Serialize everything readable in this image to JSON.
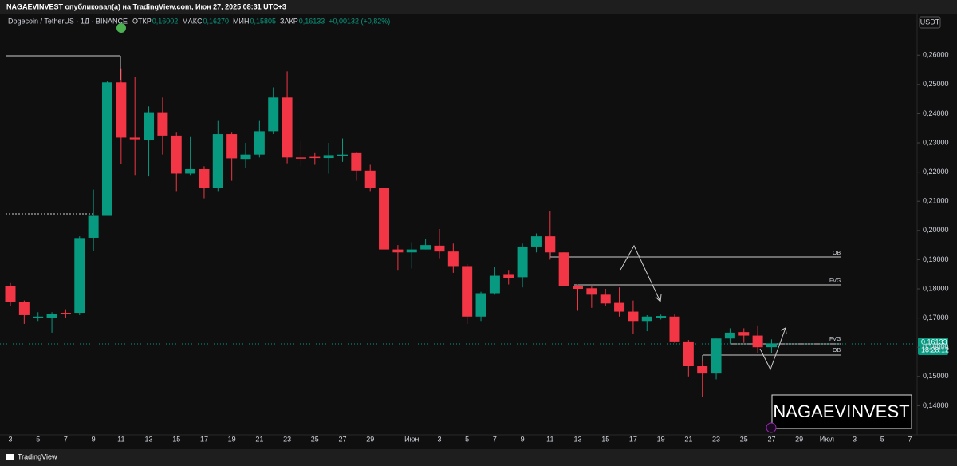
{
  "chart_data": {
    "type": "candlestick",
    "top_bar": "NAGAEVINVEST опубликовал(а) на TradingView.com, Июн 27, 2025 08:31 UTC+3",
    "symbol": "Dogecoin / TetherUS · 1Д · BINANCE",
    "ohlc_header": [
      {
        "label": "ОТКР",
        "value": "0,16002"
      },
      {
        "label": "МАКС",
        "value": "0,16270"
      },
      {
        "label": "МИН",
        "value": "0,15805"
      },
      {
        "label": "ЗАКР",
        "value": "0,16133"
      }
    ],
    "change": "+0,00132 (+0,82%)",
    "currency": "USDT",
    "last_price": "0,16133",
    "countdown": "18:28:12",
    "watermark": "NAGAEVINVEST",
    "footer": "TradingView",
    "annotations": [
      "OB",
      "FVG",
      "FVG",
      "OB"
    ],
    "up_color": "#089981",
    "down_color": "#f23645",
    "categories": [
      "3",
      null,
      "5",
      null,
      "7",
      null,
      "9",
      null,
      "11",
      null,
      "13",
      null,
      "15",
      null,
      "17",
      null,
      "19",
      null,
      "21",
      null,
      "23",
      null,
      "25",
      null,
      "27",
      null,
      "29",
      null,
      null,
      "Июн",
      null,
      "3",
      null,
      "5",
      null,
      "7",
      null,
      "9",
      null,
      "11",
      null,
      "13",
      null,
      "15",
      null,
      "17",
      null,
      "19",
      null,
      "21",
      null,
      "23",
      null,
      "25",
      null,
      "27",
      null,
      "29",
      null,
      "Июл",
      null,
      "3",
      null,
      "5",
      null,
      "7"
    ],
    "open": [
      0.181,
      0.1755,
      0.1705,
      0.17,
      0.1718,
      0.1718,
      0.1975,
      0.205,
      0.2507,
      0.2318,
      0.231,
      0.2405,
      0.2325,
      0.2195,
      0.221,
      0.2145,
      0.233,
      0.2245,
      0.226,
      0.234,
      0.2455,
      0.225,
      0.2252,
      0.2248,
      0.2258,
      0.2265,
      0.2205,
      0.2145,
      0.1935,
      0.1925,
      0.1935,
      0.1948,
      0.1928,
      0.1878,
      0.1705,
      0.1785,
      0.1848,
      0.184,
      0.1945,
      0.198,
      0.1925,
      0.181,
      0.1802,
      0.178,
      0.1752,
      0.1722,
      0.169,
      0.17,
      0.1705,
      0.162,
      0.1535,
      0.151,
      0.163,
      0.1652,
      0.164,
      0.16002,
      null,
      null,
      null,
      null,
      null,
      null,
      null,
      null,
      null,
      null
    ],
    "high": [
      0.182,
      0.176,
      0.172,
      0.172,
      0.173,
      0.198,
      0.214,
      0.251,
      0.2555,
      0.2525,
      0.2425,
      0.2455,
      0.2335,
      0.232,
      0.222,
      0.2375,
      0.2335,
      0.23,
      0.2375,
      0.249,
      0.2545,
      0.2305,
      0.2265,
      0.23,
      0.2315,
      0.227,
      0.2225,
      0.2145,
      0.195,
      0.196,
      0.197,
      0.2005,
      0.1955,
      0.1885,
      0.179,
      0.1875,
      0.1865,
      0.1955,
      0.199,
      0.2065,
      0.1925,
      0.1815,
      0.181,
      0.18,
      0.1805,
      0.176,
      0.171,
      0.1712,
      0.1715,
      0.1625,
      0.1555,
      0.163,
      0.1665,
      0.1665,
      0.1675,
      0.1627,
      null,
      null,
      null,
      null,
      null,
      null,
      null,
      null,
      null,
      null
    ],
    "low": [
      0.174,
      0.168,
      0.169,
      0.165,
      0.17,
      0.171,
      0.193,
      0.205,
      0.2228,
      0.219,
      0.2185,
      0.226,
      0.2135,
      0.219,
      0.211,
      0.2135,
      0.217,
      0.2215,
      0.225,
      0.233,
      0.223,
      0.222,
      0.2225,
      0.2195,
      0.2235,
      0.217,
      0.2135,
      0.1935,
      0.1865,
      0.187,
      0.1935,
      0.1905,
      0.1855,
      0.168,
      0.169,
      0.178,
      0.1815,
      0.1805,
      0.1925,
      0.19,
      0.181,
      0.1725,
      0.1735,
      0.174,
      0.1705,
      0.1645,
      0.1655,
      0.1695,
      0.1615,
      0.15,
      0.143,
      0.149,
      0.161,
      0.1615,
      0.158,
      0.15805,
      null,
      null,
      null,
      null,
      null,
      null,
      null,
      null,
      null,
      null
    ],
    "close": [
      0.1755,
      0.171,
      0.1705,
      0.1715,
      0.1715,
      0.1974,
      0.205,
      0.2507,
      0.2318,
      0.2312,
      0.2405,
      0.2325,
      0.2195,
      0.221,
      0.2145,
      0.233,
      0.2247,
      0.226,
      0.234,
      0.2455,
      0.225,
      0.2248,
      0.2248,
      0.2258,
      0.226,
      0.2205,
      0.2145,
      0.1935,
      0.1925,
      0.1935,
      0.195,
      0.1928,
      0.1878,
      0.1705,
      0.1785,
      0.1845,
      0.1838,
      0.1945,
      0.198,
      0.1925,
      0.181,
      0.18,
      0.178,
      0.175,
      0.1722,
      0.169,
      0.1705,
      0.1707,
      0.162,
      0.1535,
      0.151,
      0.163,
      0.165,
      0.164,
      0.16,
      0.16133,
      null,
      null,
      null,
      null,
      null,
      null,
      null,
      null,
      null,
      null
    ],
    "ylim": [
      0.13,
      0.274
    ],
    "yticks": [
      {
        "value": 0.14,
        "label": "0,14000"
      },
      {
        "value": 0.15,
        "label": "0,15000"
      },
      {
        "value": 0.16,
        "label": "0,16000"
      },
      {
        "value": 0.17,
        "label": "0,17000"
      },
      {
        "value": 0.18,
        "label": "0,18000"
      },
      {
        "value": 0.19,
        "label": "0,19000"
      },
      {
        "value": 0.2,
        "label": "0,20000"
      },
      {
        "value": 0.21,
        "label": "0,21000"
      },
      {
        "value": 0.22,
        "label": "0,22000"
      },
      {
        "value": 0.23,
        "label": "0,23000"
      },
      {
        "value": 0.24,
        "label": "0,24000"
      },
      {
        "value": 0.25,
        "label": "0,25000"
      },
      {
        "value": 0.26,
        "label": "0,26000"
      }
    ]
  }
}
